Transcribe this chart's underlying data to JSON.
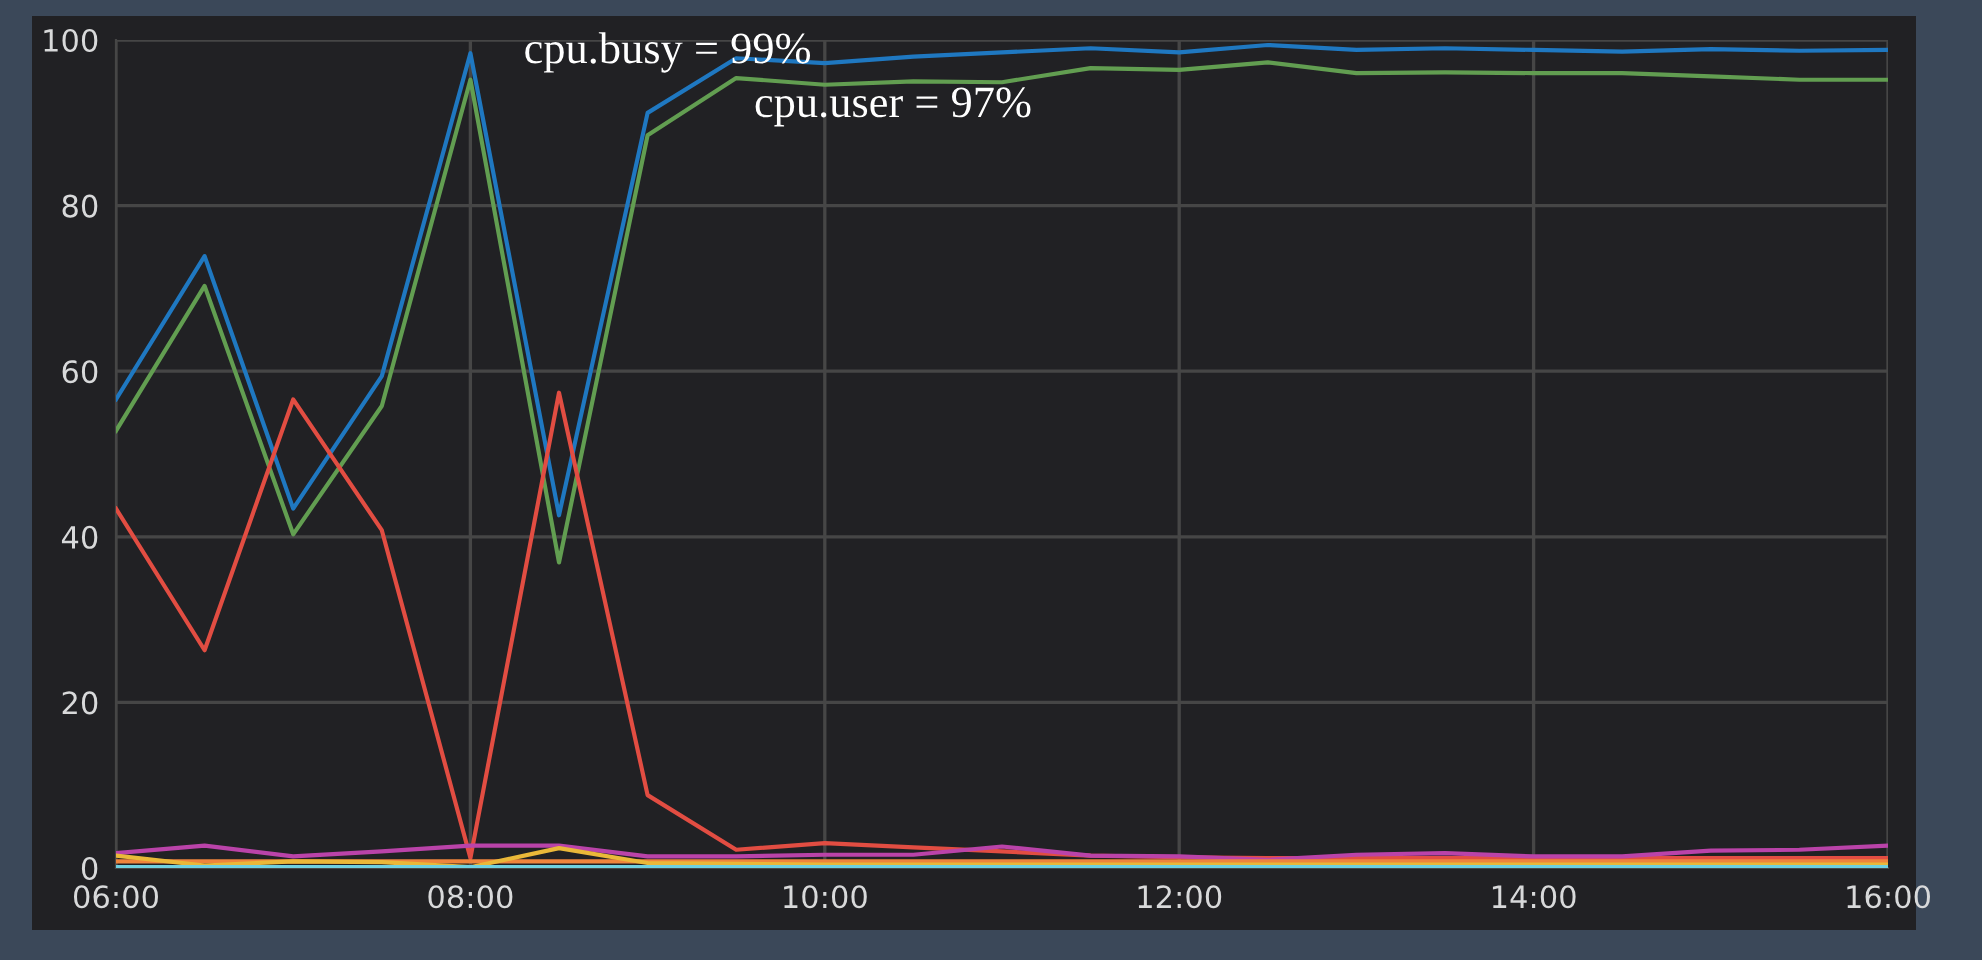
{
  "chart_data": {
    "type": "line",
    "x": [
      6,
      6.5,
      7,
      7.5,
      8,
      8.5,
      9,
      9.5,
      10,
      10.5,
      11,
      11.5,
      12,
      12.5,
      13,
      13.5,
      14,
      14.5,
      15,
      15.5,
      16
    ],
    "series": [
      {
        "color": "#1f78c1",
        "values": [
          56.6,
          73.9,
          43.4,
          59.4,
          98.4,
          42.6,
          91.2,
          97.8,
          97.2,
          98,
          98.5,
          99,
          98.5,
          99.4,
          98.8,
          99,
          98.8,
          98.6,
          98.9,
          98.7,
          98.8
        ]
      },
      {
        "color": "#629e51",
        "values": [
          52.8,
          70.3,
          40.3,
          55.8,
          95.2,
          36.9,
          88.5,
          95.4,
          94.6,
          95,
          94.9,
          96.6,
          96.4,
          97.3,
          96,
          96.1,
          96,
          96,
          95.6,
          95.2,
          95.2
        ]
      },
      {
        "color": "#e24d42",
        "values": [
          43.4,
          26.3,
          56.6,
          40.8,
          1.2,
          57.4,
          8.8,
          2.2,
          3,
          2.5,
          2,
          1.5,
          1.3,
          1.2,
          1.2,
          1.2,
          1.2,
          1.2,
          1.2,
          1.2,
          1.2
        ]
      },
      {
        "color": "#ba43a9",
        "values": [
          1.8,
          2.7,
          1.4,
          2,
          2.7,
          2.7,
          1.4,
          1.4,
          1.6,
          1.6,
          2.6,
          1.5,
          1.4,
          1,
          1.6,
          1.8,
          1.4,
          1.4,
          2.1,
          2.2,
          2.7
        ]
      },
      {
        "color": "#ef843c",
        "values": [
          0.8,
          0.8,
          0.8,
          0.8,
          0.8,
          0.8,
          0.8,
          0.8,
          0.8,
          0.8,
          0.8,
          0.8,
          0.8,
          0.8,
          0.8,
          0.8,
          0.8,
          0.8,
          0.8,
          0.8,
          0.8
        ]
      },
      {
        "color": "#eab839",
        "values": [
          1.5,
          0.3,
          0.8,
          0.7,
          0.1,
          2.4,
          0.6,
          0.5,
          0.4,
          0.4,
          0.4,
          0.4,
          0.4,
          0.4,
          0.4,
          0.4,
          0.4,
          0.4,
          0.4,
          0.4,
          0.4
        ]
      },
      {
        "color": "#6ed0e0",
        "values": [
          0.1,
          0.1,
          0.1,
          0.1,
          0.1,
          0.1,
          0.1,
          0.1,
          0.1,
          0.1,
          0.1,
          0.1,
          0.1,
          0.1,
          0.1,
          0.1,
          0.1,
          0.1,
          0.1,
          0.1,
          0.1
        ]
      }
    ],
    "xlim": [
      6,
      16
    ],
    "xticks": [
      {
        "value": 6,
        "label": "06:00"
      },
      {
        "value": 8,
        "label": "08:00"
      },
      {
        "value": 10,
        "label": "10:00"
      },
      {
        "value": 12,
        "label": "12:00"
      },
      {
        "value": 14,
        "label": "14:00"
      },
      {
        "value": 16,
        "label": "16:00"
      }
    ],
    "ylim": [
      0,
      100
    ],
    "yticks": [
      0,
      20,
      40,
      60,
      80,
      100
    ],
    "grid": true,
    "annotations": [
      "cpu.busy = 99%",
      "cpu.user = 97%"
    ]
  }
}
